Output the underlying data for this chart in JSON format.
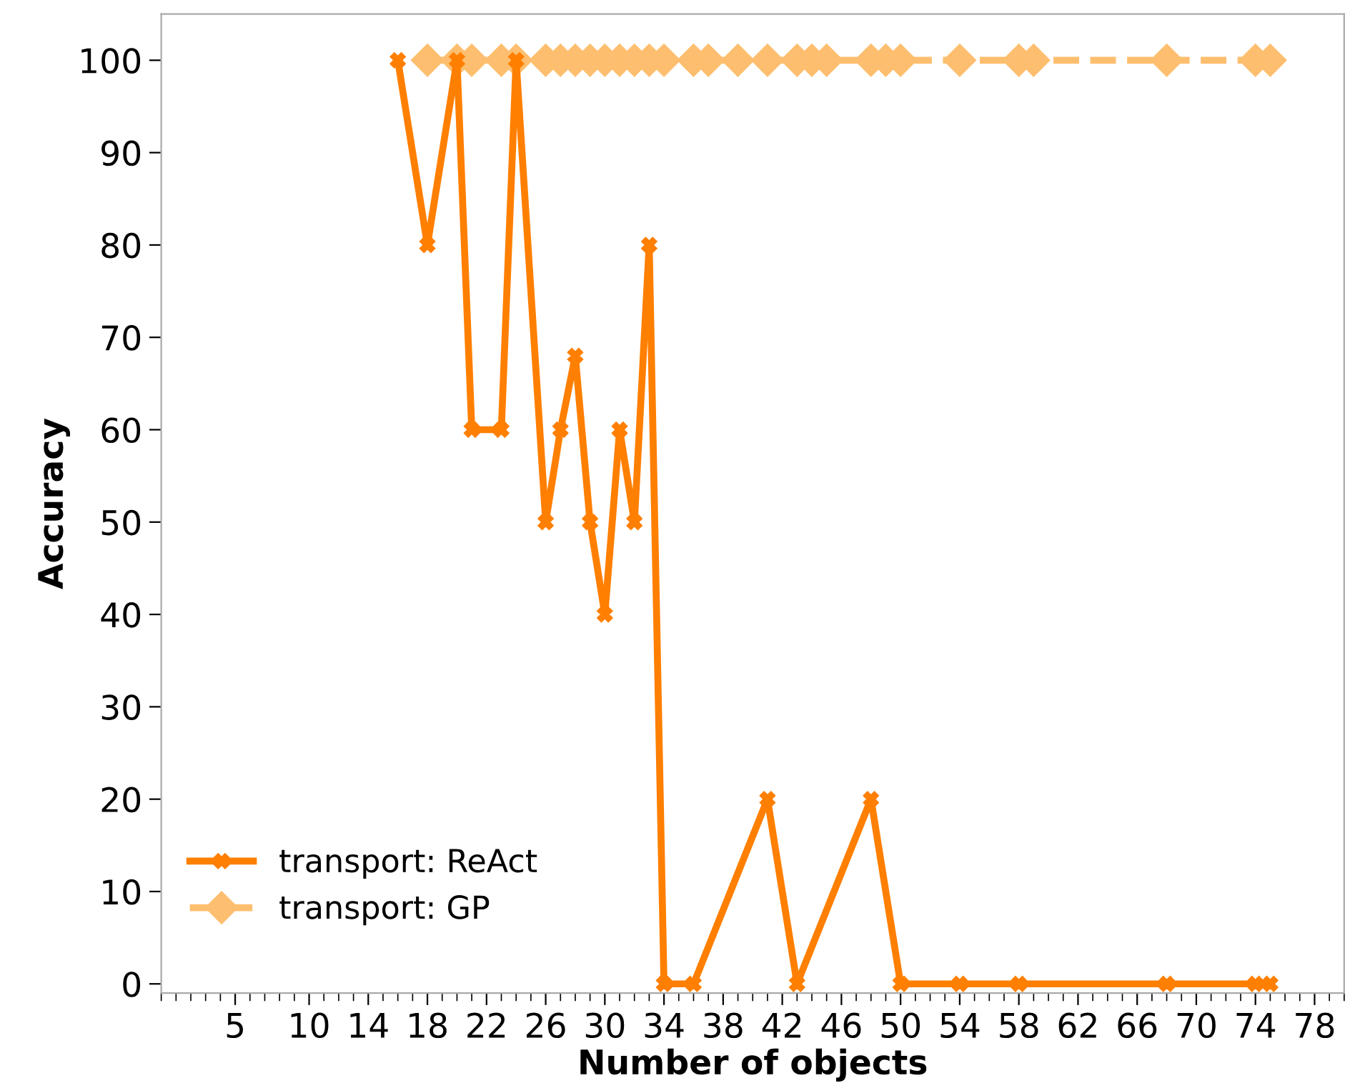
{
  "chart_data": {
    "type": "line",
    "xlabel": "Number of objects",
    "ylabel": "Accuracy",
    "xlim": [
      0,
      80
    ],
    "xticks": [
      5,
      10,
      14,
      18,
      22,
      26,
      30,
      34,
      38,
      42,
      46,
      50,
      54,
      58,
      62,
      66,
      70,
      74,
      78
    ],
    "ylim": [
      -1,
      105
    ],
    "yticks": [
      0,
      10,
      20,
      30,
      40,
      50,
      60,
      70,
      80,
      90,
      100
    ],
    "grid": false,
    "legend": "bottom left",
    "series": [
      {
        "name": "transport: ReAct",
        "color": "#ff7f00",
        "marker": "cross",
        "line_style": "solid",
        "x": [
          16,
          18,
          20,
          21,
          23,
          24,
          26,
          27,
          28,
          29,
          30,
          31,
          32,
          33,
          34,
          36,
          41,
          43,
          48,
          50,
          54,
          58,
          68,
          74,
          75
        ],
        "values": [
          100,
          80,
          100,
          60,
          60,
          100,
          50,
          60,
          68,
          50,
          40,
          60,
          50,
          80,
          0,
          0,
          20,
          0,
          20,
          0,
          0,
          0,
          0,
          0,
          0
        ]
      },
      {
        "name": "transport: GP",
        "color": "#fdbf6f",
        "marker": "diamond",
        "line_style": "dashed",
        "x": [
          18,
          20,
          21,
          23,
          24,
          26,
          27,
          28,
          29,
          30,
          31,
          32,
          33,
          34,
          36,
          37,
          39,
          41,
          43,
          44,
          45,
          48,
          49,
          50,
          54,
          58,
          59,
          68,
          74,
          75
        ],
        "values": [
          100,
          100,
          100,
          100,
          100,
          100,
          100,
          100,
          100,
          100,
          100,
          100,
          100,
          100,
          100,
          100,
          100,
          100,
          100,
          100,
          100,
          100,
          100,
          100,
          100,
          100,
          100,
          100,
          100,
          100
        ]
      }
    ]
  }
}
